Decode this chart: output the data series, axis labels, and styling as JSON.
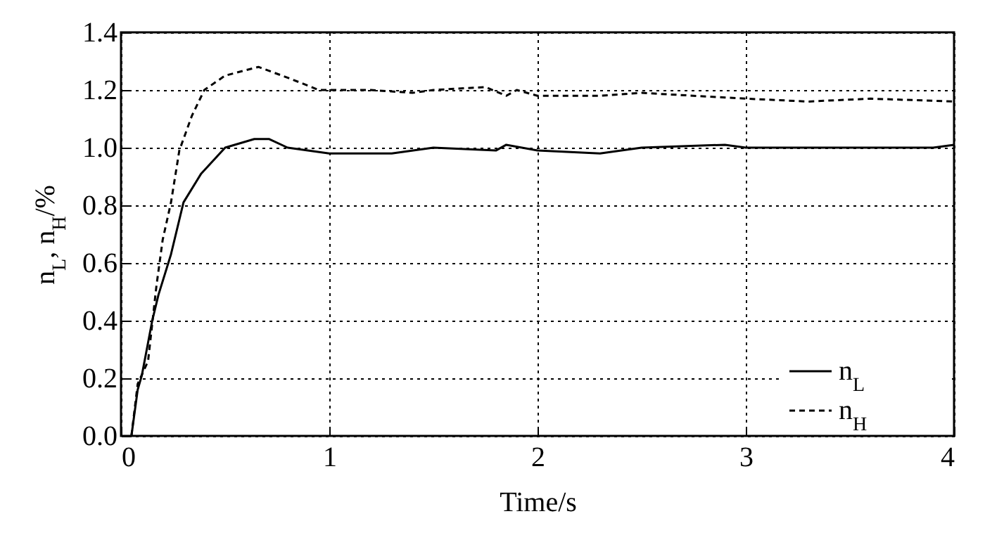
{
  "chart_data": {
    "type": "line",
    "xlabel": "Time/s",
    "ylabel": "n$_{L}$, n$_{H}$/%",
    "xlim": [
      0,
      4
    ],
    "xticks": [
      0,
      1,
      2,
      3,
      4
    ],
    "ylim": [
      0,
      1.4
    ],
    "yticks": [
      {
        "value": 0,
        "label": "0.0"
      },
      {
        "value": 0.2,
        "label": "0.2"
      },
      {
        "value": 0.4,
        "label": "0.4"
      },
      {
        "value": 0.6,
        "label": "0.6"
      },
      {
        "value": 0.8,
        "label": "0.8"
      },
      {
        "value": 1,
        "label": "1.0"
      },
      {
        "value": 1.2,
        "label": "1.2"
      },
      {
        "value": 1.4,
        "label": "1.4"
      }
    ],
    "grid": true,
    "legend": "bottom right",
    "series": [
      {
        "name": "n$_{L}$",
        "color": "#000000",
        "line_style": "solid",
        "x": [
          0.05,
          0.08,
          0.1,
          0.15,
          0.18,
          0.24,
          0.3,
          0.385,
          0.5,
          0.64,
          0.71,
          0.8,
          1.0,
          1.3,
          1.5,
          1.8,
          1.85,
          2.0,
          2.3,
          2.5,
          2.9,
          3.0,
          3.5,
          3.9,
          4.0
        ],
        "values": [
          0,
          0.16,
          0.21,
          0.4,
          0.49,
          0.63,
          0.81,
          0.91,
          1.0,
          1.03,
          1.03,
          1.0,
          0.98,
          0.98,
          1.0,
          0.99,
          1.01,
          0.99,
          0.98,
          1.0,
          1.01,
          1.0,
          1.0,
          1.0,
          1.01
        ]
      },
      {
        "name": "n$_{H}$",
        "color": "#000000",
        "line_style": "dashed",
        "x": [
          0.05,
          0.08,
          0.13,
          0.17,
          0.2,
          0.24,
          0.28,
          0.34,
          0.4,
          0.5,
          0.66,
          0.81,
          0.95,
          1.2,
          1.4,
          1.5,
          1.75,
          1.85,
          1.9,
          2.0,
          2.3,
          2.5,
          3.0,
          3.3,
          3.6,
          4.0
        ],
        "values": [
          0,
          0.18,
          0.26,
          0.52,
          0.68,
          0.81,
          0.99,
          1.11,
          1.2,
          1.25,
          1.28,
          1.24,
          1.2,
          1.2,
          1.19,
          1.2,
          1.21,
          1.18,
          1.2,
          1.18,
          1.18,
          1.19,
          1.17,
          1.16,
          1.17,
          1.16
        ]
      }
    ]
  }
}
